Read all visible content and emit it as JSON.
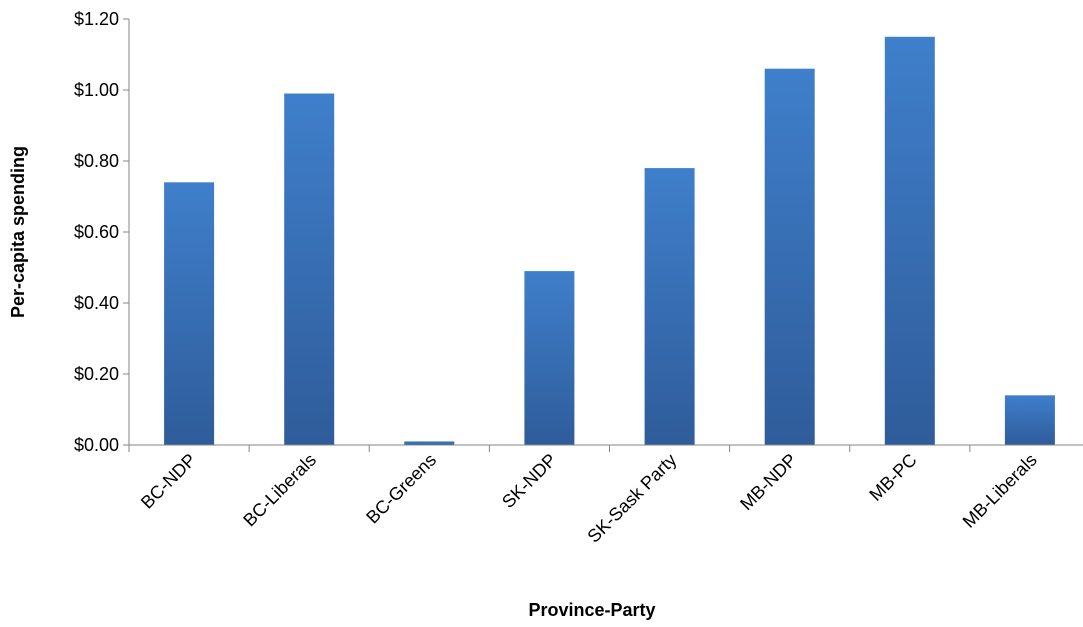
{
  "chart_data": {
    "type": "bar",
    "title": "",
    "xlabel": "Province-Party",
    "ylabel": "Per-capita spending",
    "categories": [
      "BC-NDP",
      "BC-Liberals",
      "BC-Greens",
      "SK-NDP",
      "SK-Sask Party",
      "MB-NDP",
      "MB-PC",
      "MB-Liberals"
    ],
    "values": [
      0.74,
      0.99,
      0.01,
      0.49,
      0.78,
      1.06,
      1.15,
      0.14
    ],
    "ylim": [
      0,
      1.2
    ],
    "yticks": [
      0,
      0.2,
      0.4,
      0.6,
      0.8,
      1.0,
      1.2
    ],
    "ytick_labels": [
      "$0.00",
      "$0.20",
      "$0.40",
      "$0.60",
      "$0.80",
      "$1.00",
      "$1.20"
    ],
    "grid": false,
    "legend": "none",
    "colors": {
      "bar_top": "#3F7FCB",
      "bar_bottom": "#2F5C9A",
      "axis": "#868686"
    }
  }
}
